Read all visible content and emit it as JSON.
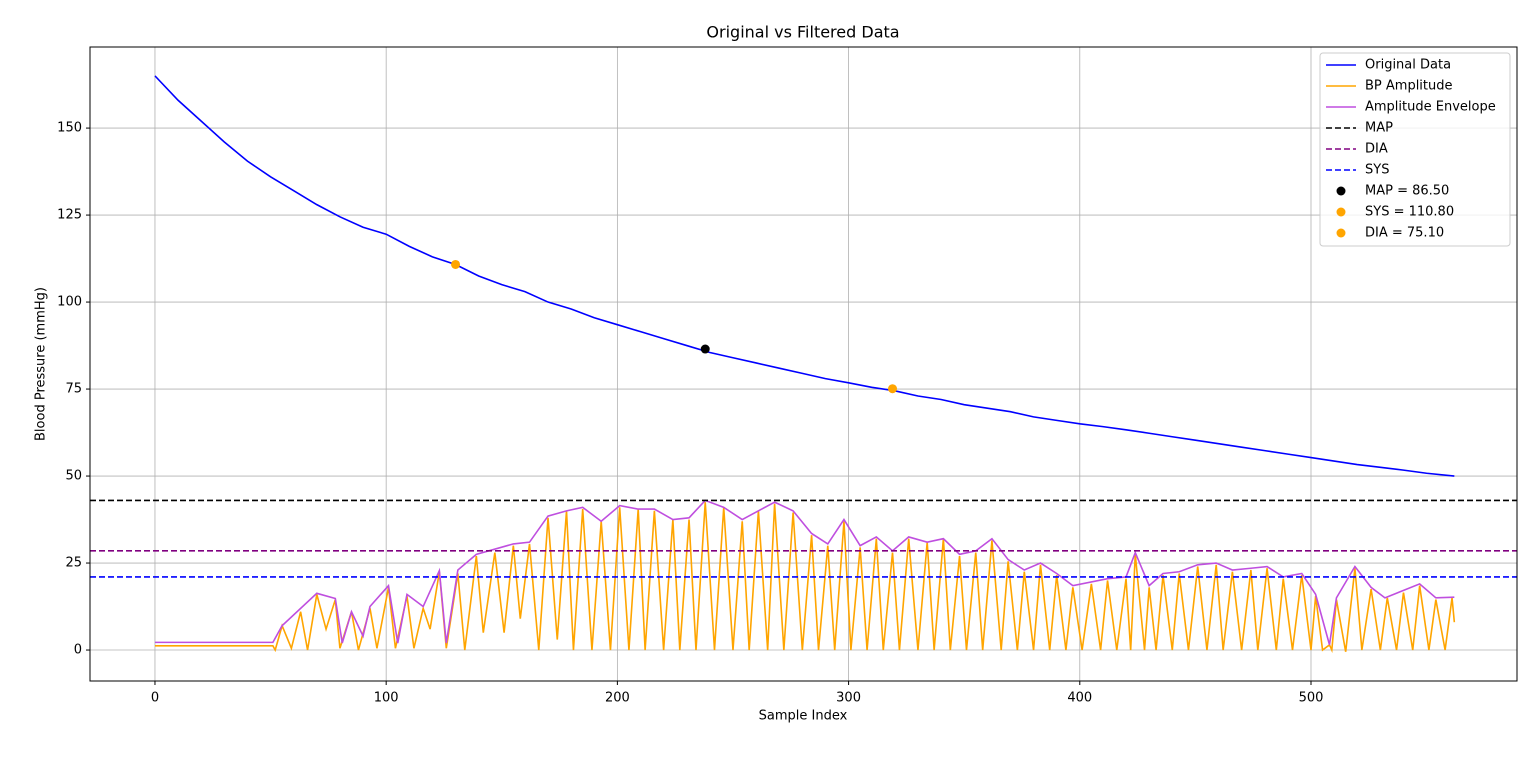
{
  "chart_data": {
    "type": "line",
    "title": "Original vs Filtered Data",
    "x_label": "Sample Index",
    "y_label": "Blood Pressure (mmHg)",
    "xlim": [
      -28.1,
      589.1
    ],
    "ylim": [
      -8.9,
      173.3
    ],
    "xticks": [
      0,
      100,
      200,
      300,
      400,
      500
    ],
    "yticks": [
      0,
      25,
      50,
      75,
      100,
      125,
      150
    ],
    "grid": true,
    "legend": "upper right",
    "series": [
      {
        "name": "Original Data",
        "color": "#0000ff",
        "x": [
          0,
          10,
          20,
          30,
          40,
          50,
          60,
          70,
          80,
          90,
          100,
          110,
          120,
          130,
          140,
          150,
          160,
          170,
          180,
          190,
          200,
          210,
          220,
          230,
          240,
          250,
          260,
          270,
          280,
          290,
          300,
          310,
          320,
          330,
          340,
          350,
          360,
          370,
          380,
          390,
          400,
          410,
          420,
          430,
          440,
          450,
          460,
          470,
          480,
          490,
          500,
          510,
          520,
          530,
          540,
          550,
          562
        ],
        "values": [
          165,
          158,
          152,
          146,
          140.5,
          136,
          132,
          128,
          124.5,
          121.5,
          119.5,
          116,
          113,
          110.8,
          107.5,
          105,
          103,
          100,
          98,
          95.5,
          93.5,
          91.5,
          89.5,
          87.5,
          85.5,
          84,
          82.5,
          81,
          79.5,
          78,
          76.8,
          75.5,
          74.5,
          73,
          72,
          70.5,
          69.5,
          68.5,
          67,
          66,
          65,
          64.2,
          63.3,
          62.3,
          61.3,
          60.3,
          59.3,
          58.3,
          57.3,
          56.3,
          55.3,
          54.3,
          53.3,
          52.5,
          51.7,
          50.8,
          50
        ]
      },
      {
        "name": "BP Amplitude",
        "color": "#ffa500",
        "x": [
          0,
          51,
          52,
          55,
          59,
          63,
          66,
          70,
          74,
          78,
          80,
          85,
          88,
          93,
          96,
          101,
          104,
          109,
          112,
          116,
          119,
          123,
          126,
          131,
          134,
          139,
          142,
          147,
          151,
          155,
          158,
          162,
          166,
          170,
          174,
          178,
          181,
          185,
          189,
          193,
          197,
          201,
          205,
          209,
          212,
          216,
          220,
          224,
          227,
          231,
          234,
          238,
          242,
          246,
          250,
          254,
          257,
          261,
          265,
          268,
          272,
          276,
          280,
          284,
          287,
          291,
          294,
          298,
          301,
          305,
          308,
          312,
          315,
          319,
          322,
          326,
          330,
          334,
          337,
          341,
          344,
          348,
          351,
          355,
          358,
          362,
          366,
          369,
          373,
          376,
          380,
          383,
          387,
          390,
          394,
          397,
          401,
          405,
          409,
          412,
          416,
          420,
          422,
          424,
          428,
          430,
          433,
          436,
          440,
          443,
          447,
          451,
          455,
          459,
          462,
          466,
          470,
          474,
          477,
          481,
          485,
          488,
          492,
          496,
          500,
          502,
          505,
          508,
          509,
          511,
          515,
          519,
          522,
          526,
          530,
          533,
          537,
          540,
          544,
          547,
          551,
          554,
          558,
          561,
          562
        ],
        "values": [
          1.2,
          1.2,
          0,
          7,
          0.5,
          11,
          0,
          16,
          6,
          14.5,
          0.5,
          11,
          0,
          12,
          0.5,
          18,
          0.5,
          15.5,
          0.5,
          12,
          6,
          22.5,
          0.5,
          22,
          0,
          27,
          5,
          28,
          5,
          30,
          9,
          30.5,
          0,
          38,
          3,
          40,
          0,
          40.5,
          0,
          37,
          0,
          41,
          0,
          40.5,
          0,
          40,
          0,
          37.5,
          0,
          37.5,
          0,
          42.5,
          0,
          41,
          0,
          37,
          0,
          40,
          0,
          42,
          0,
          39.5,
          0,
          33,
          0,
          30,
          0,
          37,
          0,
          29.5,
          0,
          32,
          0,
          28,
          0,
          32,
          0,
          31,
          0,
          32,
          0,
          27,
          0,
          28,
          0,
          31.5,
          0,
          25.5,
          0,
          22.5,
          0,
          24.5,
          0,
          21.5,
          0,
          18,
          0,
          19,
          0,
          20,
          0,
          20.5,
          0,
          27.5,
          0,
          18,
          0,
          21.5,
          0,
          22,
          0,
          24,
          0,
          24.5,
          0,
          22.5,
          0,
          23,
          0,
          23.5,
          0,
          20.5,
          0,
          21.5,
          0,
          15.5,
          0,
          1.5,
          0,
          14.5,
          -0.5,
          23.5,
          0,
          17.5,
          0,
          15,
          0,
          16.5,
          0,
          18.5,
          0,
          14.5,
          0,
          15,
          8
        ]
      },
      {
        "name": "Amplitude Envelope",
        "color": "#bf4fdf",
        "x": [
          0,
          51,
          55,
          70,
          78,
          81,
          85,
          90,
          93,
          101,
          105,
          109,
          116,
          123,
          126,
          131,
          139,
          155,
          162,
          170,
          178,
          185,
          193,
          201,
          209,
          216,
          224,
          231,
          238,
          246,
          254,
          268,
          276,
          284,
          291,
          298,
          305,
          312,
          319,
          326,
          334,
          341,
          348,
          355,
          362,
          369,
          376,
          383,
          390,
          397,
          412,
          420,
          424,
          430,
          436,
          443,
          451,
          459,
          466,
          474,
          481,
          488,
          496,
          502,
          508,
          511,
          519,
          526,
          532,
          547,
          554,
          562
        ],
        "values": [
          2.2,
          2.2,
          7,
          16.3,
          14.8,
          2,
          11,
          4,
          12.5,
          18.5,
          2,
          16,
          12.5,
          22.8,
          2,
          23,
          27.5,
          30.5,
          31,
          38.5,
          40,
          41,
          37,
          41.5,
          40.5,
          40.5,
          37.5,
          38,
          43,
          41,
          37.5,
          42.5,
          40,
          33.5,
          30.5,
          37.5,
          30,
          32.5,
          28.5,
          32.5,
          31,
          32,
          27.5,
          28.5,
          32,
          26,
          23,
          25,
          22,
          18.5,
          20.5,
          21,
          28,
          18.5,
          22,
          22.5,
          24.5,
          25,
          23,
          23.5,
          24,
          21,
          22,
          16,
          1.5,
          15,
          24,
          18,
          15,
          19,
          15,
          15.2
        ]
      }
    ],
    "hlines": [
      {
        "name": "MAP",
        "color": "#000000",
        "value": 43
      },
      {
        "name": "DIA",
        "color": "#800080",
        "value": 28.5
      },
      {
        "name": "SYS",
        "color": "#0000ff",
        "value": 21
      }
    ],
    "points": [
      {
        "name": "MAP = 86.50",
        "color": "#000000",
        "x": 238,
        "y": 86.5
      },
      {
        "name": "SYS = 110.80",
        "color": "#ffa500",
        "x": 130,
        "y": 110.8
      },
      {
        "name": "DIA = 75.10",
        "color": "#ffa500",
        "x": 319,
        "y": 75.1
      }
    ]
  }
}
